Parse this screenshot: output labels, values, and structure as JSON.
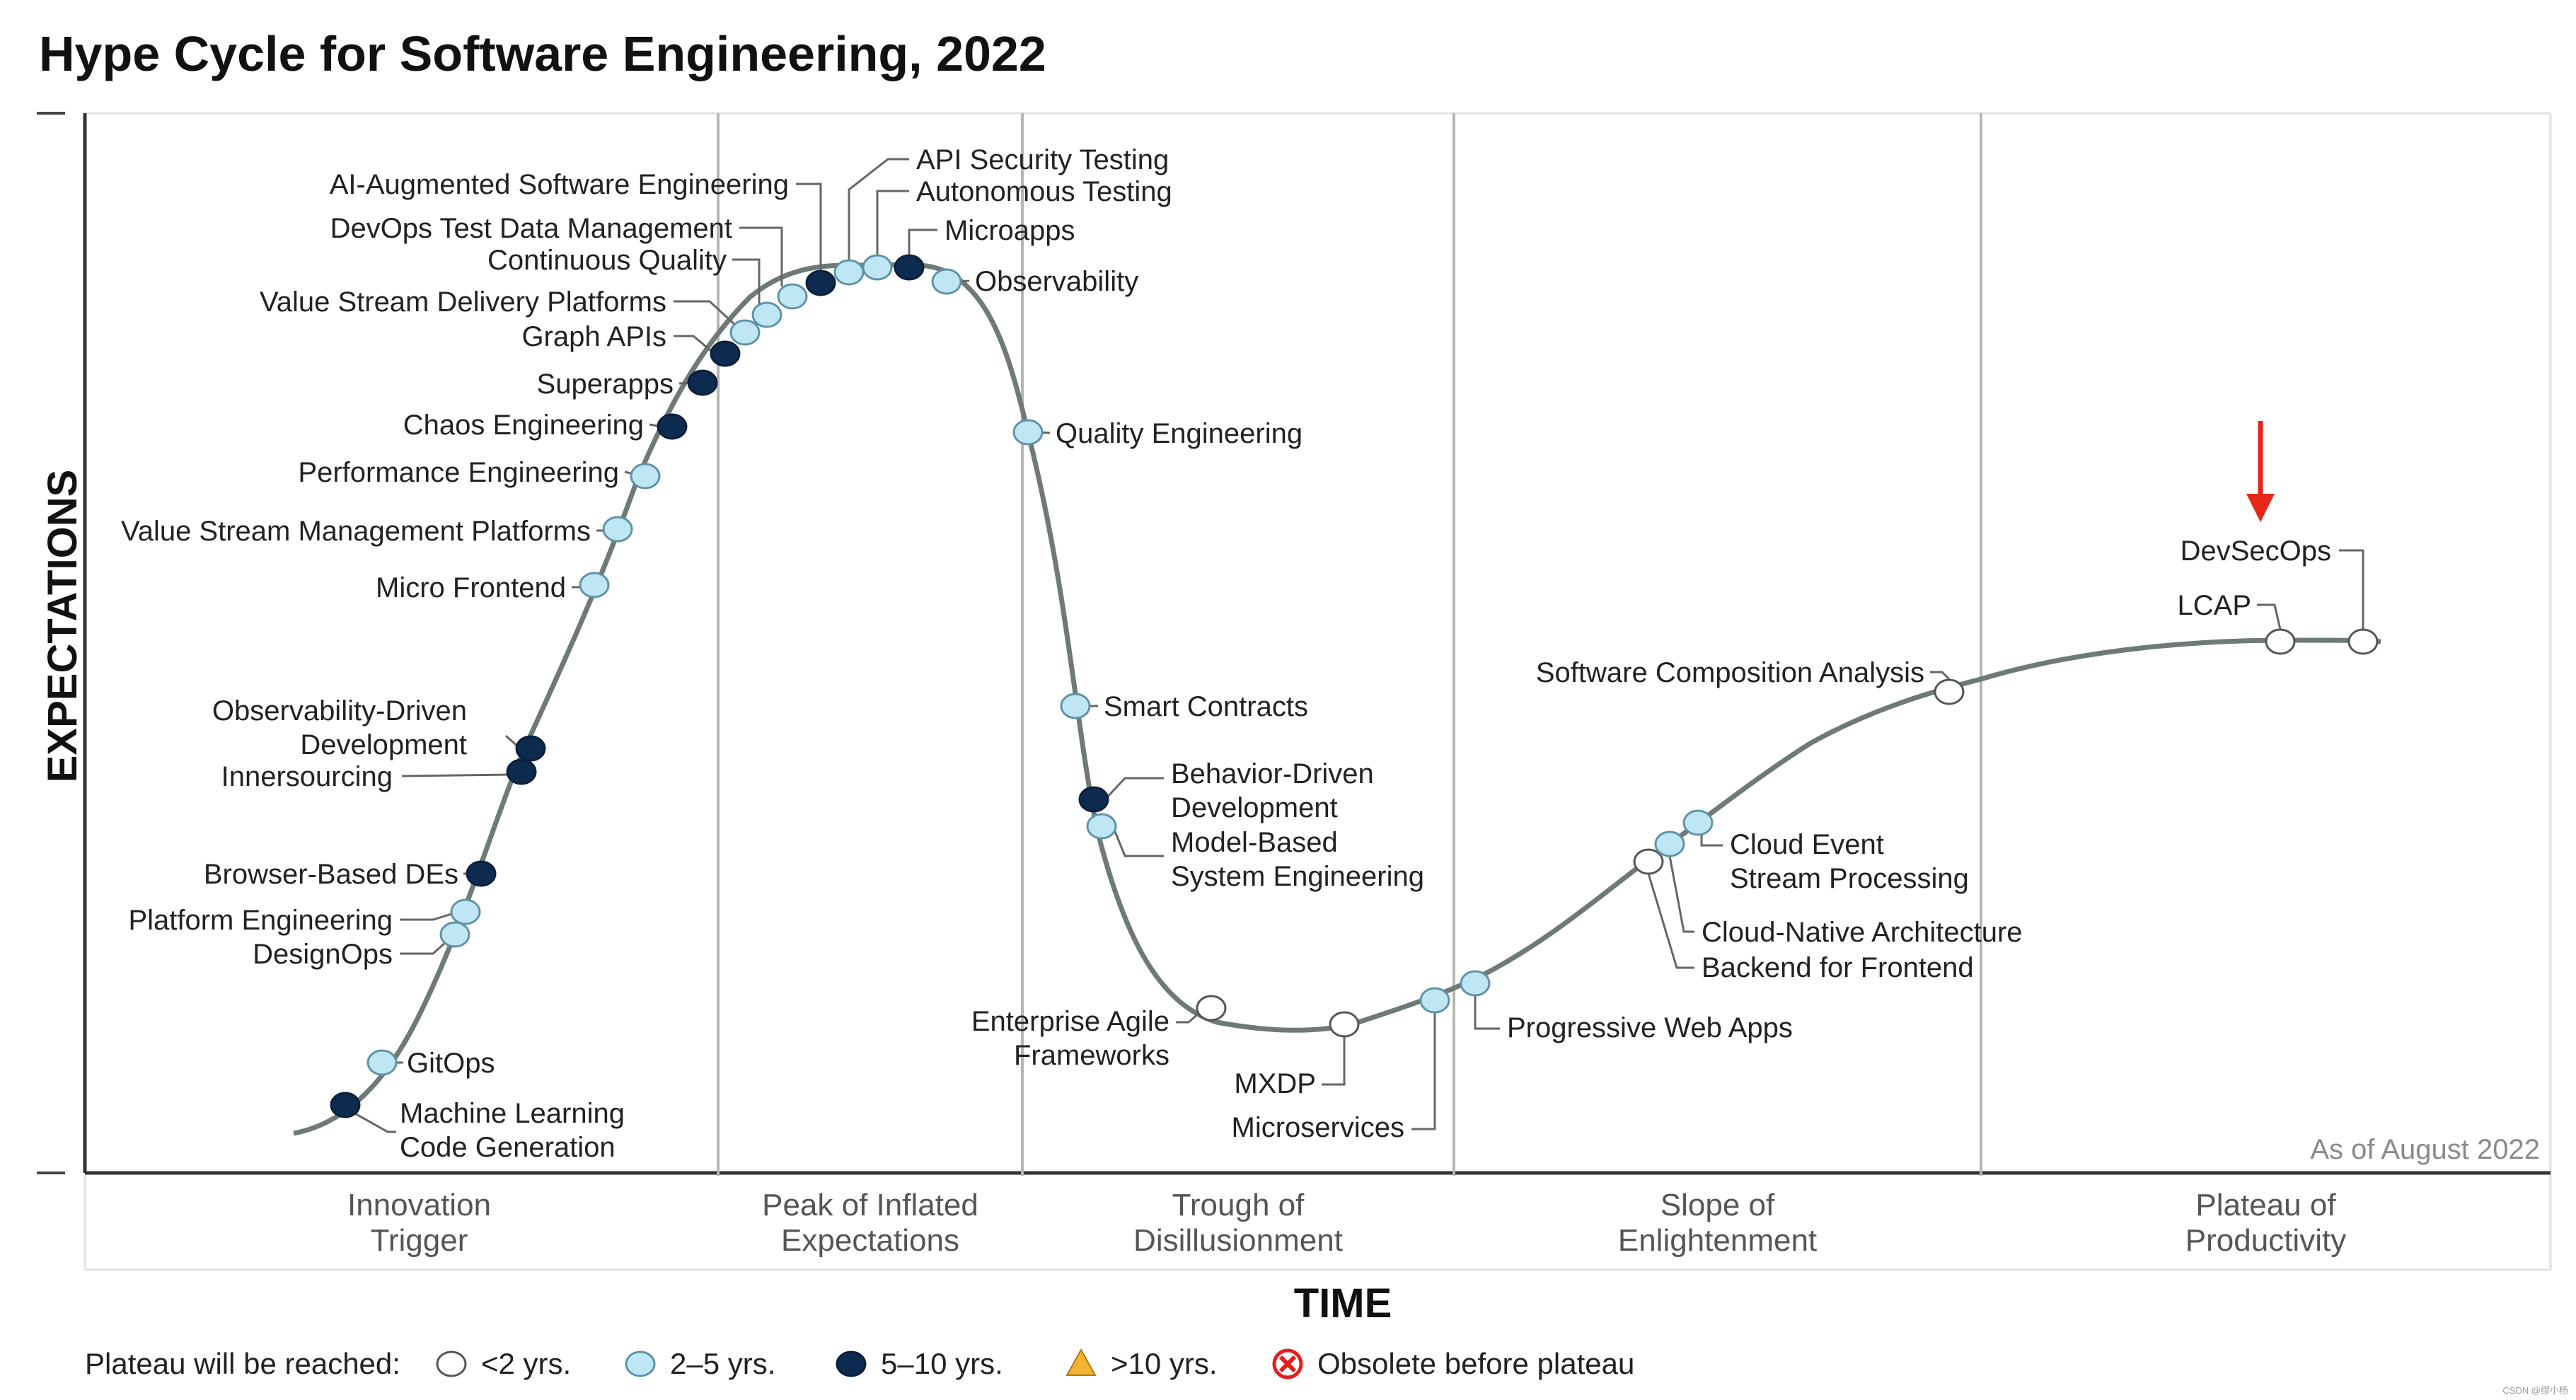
{
  "title": "Hype Cycle for Software Engineering, 2022",
  "colors": {
    "lt2": "#ffffff",
    "y2to5": "#bfe6f3",
    "y5to10": "#0d2a4f",
    "gt10": "#f2b233",
    "obsolete": "#e02020",
    "curve": "#6f7a78",
    "arrow": "#e8251a"
  },
  "chart_data": {
    "type": "scatter",
    "title": "Hype Cycle for Software Engineering, 2022",
    "xlabel": "TIME",
    "ylabel": "EXPECTATIONS",
    "phases": [
      "Innovation Trigger",
      "Peak of Inflated Expectations",
      "Trough of Disillusionment",
      "Slope of Enlightenment",
      "Plateau of Productivity"
    ],
    "phase_labels": [
      [
        "Innovation",
        "Trigger"
      ],
      [
        "Peak of Inflated",
        "Expectations"
      ],
      [
        "Trough of",
        "Disillusionment"
      ],
      [
        "Slope of",
        "Enlightenment"
      ],
      [
        "Plateau of",
        "Productivity"
      ]
    ],
    "as_of": "As of August 2022",
    "legend": {
      "title": "Plateau will be reached:",
      "items": [
        {
          "key": "lt2",
          "label": "<2 yrs."
        },
        {
          "key": "y2to5",
          "label": "2–5 yrs."
        },
        {
          "key": "y5to10",
          "label": "5–10 yrs."
        },
        {
          "key": "gt10",
          "label": ">10 yrs."
        },
        {
          "key": "obsolete",
          "label": "Obsolete before plateau"
        }
      ]
    },
    "technologies": [
      {
        "name": [
          "Machine Learning",
          "Code Generation"
        ],
        "phase": "Innovation Trigger",
        "plateau": "y5to10"
      },
      {
        "name": [
          "GitOps"
        ],
        "phase": "Innovation Trigger",
        "plateau": "y2to5"
      },
      {
        "name": [
          "DesignOps"
        ],
        "phase": "Innovation Trigger",
        "plateau": "y2to5"
      },
      {
        "name": [
          "Platform Engineering"
        ],
        "phase": "Innovation Trigger",
        "plateau": "y2to5"
      },
      {
        "name": [
          "Browser-Based DEs"
        ],
        "phase": "Innovation Trigger",
        "plateau": "y5to10"
      },
      {
        "name": [
          "Innersourcing"
        ],
        "phase": "Innovation Trigger",
        "plateau": "y5to10"
      },
      {
        "name": [
          "Observability-Driven",
          "Development"
        ],
        "phase": "Innovation Trigger",
        "plateau": "y5to10"
      },
      {
        "name": [
          "Micro Frontend"
        ],
        "phase": "Innovation Trigger",
        "plateau": "y2to5"
      },
      {
        "name": [
          "Value Stream Management Platforms"
        ],
        "phase": "Innovation Trigger",
        "plateau": "y2to5"
      },
      {
        "name": [
          "Performance Engineering"
        ],
        "phase": "Innovation Trigger",
        "plateau": "y2to5"
      },
      {
        "name": [
          "Chaos Engineering"
        ],
        "phase": "Innovation Trigger",
        "plateau": "y5to10"
      },
      {
        "name": [
          "Superapps"
        ],
        "phase": "Innovation Trigger",
        "plateau": "y5to10"
      },
      {
        "name": [
          "Graph APIs"
        ],
        "phase": "Peak of Inflated Expectations",
        "plateau": "y5to10"
      },
      {
        "name": [
          "Value Stream Delivery Platforms"
        ],
        "phase": "Peak of Inflated Expectations",
        "plateau": "y2to5"
      },
      {
        "name": [
          "Continuous Quality"
        ],
        "phase": "Peak of Inflated Expectations",
        "plateau": "y2to5"
      },
      {
        "name": [
          "DevOps Test Data Management"
        ],
        "phase": "Peak of Inflated Expectations",
        "plateau": "y2to5"
      },
      {
        "name": [
          "AI-Augmented Software Engineering"
        ],
        "phase": "Peak of Inflated Expectations",
        "plateau": "y5to10"
      },
      {
        "name": [
          "API Security Testing"
        ],
        "phase": "Peak of Inflated Expectations",
        "plateau": "y2to5"
      },
      {
        "name": [
          "Autonomous Testing"
        ],
        "phase": "Peak of Inflated Expectations",
        "plateau": "y2to5"
      },
      {
        "name": [
          "Microapps"
        ],
        "phase": "Peak of Inflated Expectations",
        "plateau": "y5to10"
      },
      {
        "name": [
          "Observability"
        ],
        "phase": "Peak of Inflated Expectations",
        "plateau": "y2to5"
      },
      {
        "name": [
          "Quality Engineering"
        ],
        "phase": "Trough of Disillusionment",
        "plateau": "y2to5"
      },
      {
        "name": [
          "Smart Contracts"
        ],
        "phase": "Trough of Disillusionment",
        "plateau": "y2to5"
      },
      {
        "name": [
          "Behavior-Driven",
          "Development"
        ],
        "phase": "Trough of Disillusionment",
        "plateau": "y5to10"
      },
      {
        "name": [
          "Model-Based",
          "System Engineering"
        ],
        "phase": "Trough of Disillusionment",
        "plateau": "y2to5"
      },
      {
        "name": [
          "Enterprise Agile",
          "Frameworks"
        ],
        "phase": "Trough of Disillusionment",
        "plateau": "lt2"
      },
      {
        "name": [
          "MXDP"
        ],
        "phase": "Trough of Disillusionment",
        "plateau": "lt2"
      },
      {
        "name": [
          "Microservices"
        ],
        "phase": "Trough of Disillusionment",
        "plateau": "y2to5"
      },
      {
        "name": [
          "Progressive Web Apps"
        ],
        "phase": "Slope of Enlightenment",
        "plateau": "y2to5"
      },
      {
        "name": [
          "Backend for Frontend"
        ],
        "phase": "Slope of Enlightenment",
        "plateau": "lt2"
      },
      {
        "name": [
          "Cloud-Native Architecture"
        ],
        "phase": "Slope of Enlightenment",
        "plateau": "y2to5"
      },
      {
        "name": [
          "Cloud Event",
          "Stream Processing"
        ],
        "phase": "Slope of Enlightenment",
        "plateau": "y2to5"
      },
      {
        "name": [
          "Software Composition Analysis"
        ],
        "phase": "Slope of Enlightenment",
        "plateau": "lt2"
      },
      {
        "name": [
          "LCAP"
        ],
        "phase": "Plateau of Productivity",
        "plateau": "lt2"
      },
      {
        "name": [
          "DevSecOps"
        ],
        "phase": "Plateau of Productivity",
        "plateau": "lt2"
      }
    ]
  },
  "watermark": "CSDN @缪小杨"
}
